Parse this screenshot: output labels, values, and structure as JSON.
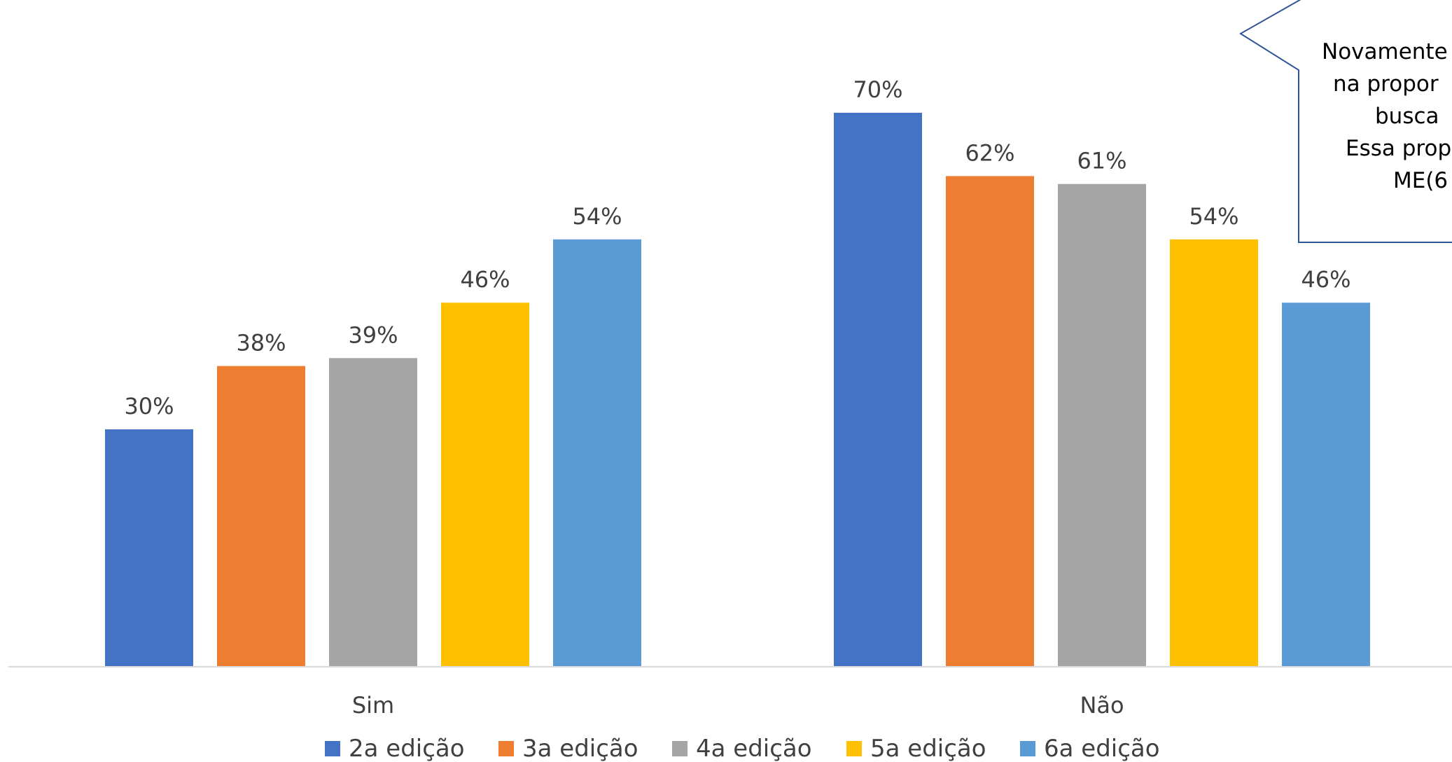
{
  "chart_data": {
    "type": "bar",
    "categories": [
      "Sim",
      "Não"
    ],
    "series": [
      {
        "name": "2a edição",
        "values": [
          30,
          70
        ],
        "color": "#4472C4"
      },
      {
        "name": "3a edição",
        "values": [
          38,
          62
        ],
        "color": "#ED7D31"
      },
      {
        "name": "4a edição",
        "values": [
          39,
          61
        ],
        "color": "#A5A5A5"
      },
      {
        "name": "5a edição",
        "values": [
          46,
          54
        ],
        "color": "#FFC000"
      },
      {
        "name": "6a edição",
        "values": [
          54,
          46
        ],
        "color": "#5B9BD5"
      }
    ],
    "value_suffix": "%",
    "ylim": [
      0,
      82
    ],
    "grid": false,
    "legend_position": "bottom",
    "axis_color": "#D9D9D9"
  },
  "callout": {
    "lines": [
      "Novamente",
      "na propor",
      "busca",
      "Essa prop",
      "ME(6"
    ],
    "border_color": "#2F5597"
  }
}
